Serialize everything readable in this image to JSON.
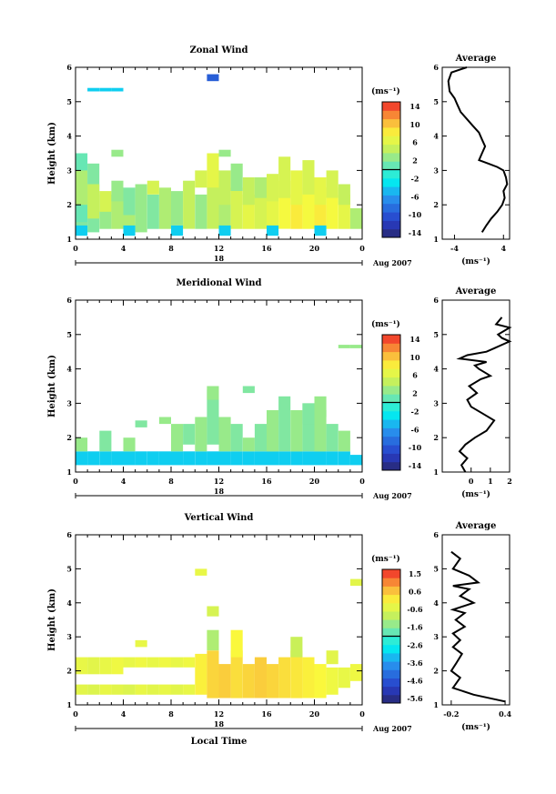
{
  "chart_data": [
    {
      "type": "heatmap",
      "title": "Zonal Wind",
      "ylabel": "Height (km)",
      "xlim": [
        0,
        24
      ],
      "ylim": [
        1,
        6
      ],
      "x_ticks": [
        "0",
        "4",
        "8",
        "12",
        "16",
        "20",
        "0"
      ],
      "y_ticks": [
        "1",
        "2",
        "3",
        "4",
        "5",
        "6"
      ],
      "day_label": "18",
      "month_label": "Aug 2007",
      "colorbar_unit": "(ms⁻¹)",
      "colorbar_ticks": [
        "14",
        "10",
        "6",
        "2",
        "-2",
        "-6",
        "-10",
        "-14"
      ],
      "colorbar_range": [
        -16,
        16
      ],
      "cells": [
        [
          0,
          1.2,
          2.0,
          2
        ],
        [
          0,
          1.5,
          2.0,
          1
        ],
        [
          0,
          2.0,
          1.0,
          4
        ],
        [
          1,
          1.2,
          2.0,
          2
        ],
        [
          1,
          1.6,
          1.0,
          5
        ],
        [
          2,
          1.3,
          1.0,
          3
        ],
        [
          2,
          1.8,
          0.6,
          6
        ],
        [
          3,
          1.3,
          1.0,
          4
        ],
        [
          3,
          2.1,
          0.6,
          3
        ],
        [
          4,
          1.3,
          1.0,
          4
        ],
        [
          4,
          1.7,
          0.8,
          2
        ],
        [
          5,
          1.2,
          1.4,
          3
        ],
        [
          6,
          1.3,
          1.0,
          2
        ],
        [
          6,
          2.3,
          0.4,
          6
        ],
        [
          7,
          1.3,
          1.2,
          4
        ],
        [
          8,
          1.4,
          1.0,
          3
        ],
        [
          9,
          1.3,
          1.4,
          5
        ],
        [
          10,
          1.3,
          1.0,
          3
        ],
        [
          10,
          2.5,
          0.5,
          6
        ],
        [
          11,
          1.3,
          1.4,
          5
        ],
        [
          11,
          2.5,
          1.0,
          7
        ],
        [
          12,
          1.3,
          1.0,
          4
        ],
        [
          12,
          2.0,
          1.0,
          5
        ],
        [
          13,
          1.3,
          1.2,
          6
        ],
        [
          13,
          2.4,
          0.8,
          3
        ],
        [
          14,
          1.3,
          1.0,
          7
        ],
        [
          14,
          2.0,
          0.8,
          5
        ],
        [
          15,
          1.3,
          1.0,
          6
        ],
        [
          15,
          2.2,
          0.6,
          4
        ],
        [
          16,
          1.3,
          1.2,
          7
        ],
        [
          16,
          2.1,
          0.8,
          6
        ],
        [
          17,
          1.3,
          1.4,
          8
        ],
        [
          17,
          2.2,
          1.2,
          6
        ],
        [
          18,
          1.3,
          1.0,
          9
        ],
        [
          18,
          2.0,
          1.0,
          7
        ],
        [
          19,
          1.3,
          1.2,
          8
        ],
        [
          19,
          2.3,
          1.0,
          6
        ],
        [
          20,
          1.3,
          1.0,
          9
        ],
        [
          20,
          2.0,
          0.8,
          7
        ],
        [
          21,
          1.3,
          1.2,
          8
        ],
        [
          21,
          2.2,
          0.8,
          6
        ],
        [
          22,
          1.3,
          1.0,
          7
        ],
        [
          22,
          2.0,
          0.6,
          5
        ],
        [
          23,
          1.3,
          0.6,
          4
        ],
        [
          0,
          1.1,
          0.3,
          -4
        ],
        [
          4,
          1.1,
          0.3,
          -4
        ],
        [
          8,
          1.1,
          0.3,
          -4
        ],
        [
          12,
          1.1,
          0.3,
          -4
        ],
        [
          16,
          1.1,
          0.3,
          -4
        ],
        [
          20,
          1.1,
          0.3,
          -4
        ],
        [
          1,
          5.3,
          0.1,
          -4
        ],
        [
          2,
          5.3,
          0.1,
          -4
        ],
        [
          3,
          5.3,
          0.1,
          -4
        ],
        [
          11,
          5.6,
          0.2,
          -10
        ],
        [
          3,
          3.4,
          0.2,
          3
        ],
        [
          12,
          3.4,
          0.2,
          3
        ]
      ],
      "average_profile": {
        "title": "Average",
        "xlim": [
          -6,
          5
        ],
        "x_ticks": [
          "-4",
          "4"
        ],
        "xlabel": "(ms⁻¹)",
        "x": [
          0.5,
          1.2,
          2.0,
          3.0,
          3.8,
          4.2,
          4.0,
          4.6,
          4.4,
          4.0,
          3.0,
          1.5,
          0.0,
          0.5,
          1.0,
          0.5,
          0.0,
          -1.0,
          -2.0,
          -3.0,
          -3.5,
          -4.0,
          -4.8,
          -5.0,
          -4.5,
          -2.0
        ],
        "y": [
          1.2,
          1.4,
          1.6,
          1.8,
          2.0,
          2.2,
          2.4,
          2.6,
          2.8,
          3.0,
          3.1,
          3.2,
          3.3,
          3.5,
          3.7,
          3.9,
          4.1,
          4.3,
          4.5,
          4.7,
          4.9,
          5.1,
          5.3,
          5.6,
          5.85,
          6.0
        ]
      }
    },
    {
      "type": "heatmap",
      "title": "Meridional Wind",
      "ylabel": "Height (km)",
      "xlim": [
        0,
        24
      ],
      "ylim": [
        1,
        6
      ],
      "x_ticks": [
        "0",
        "4",
        "8",
        "12",
        "16",
        "20",
        "0"
      ],
      "y_ticks": [
        "1",
        "2",
        "3",
        "4",
        "5",
        "6"
      ],
      "day_label": "18",
      "month_label": "Aug 2007",
      "colorbar_unit": "(ms⁻¹)",
      "colorbar_ticks": [
        "14",
        "10",
        "6",
        "2",
        "-2",
        "-6",
        "-10",
        "-14"
      ],
      "colorbar_range": [
        -16,
        16
      ],
      "cells": [
        [
          0,
          1.2,
          0.4,
          -4
        ],
        [
          1,
          1.2,
          0.4,
          -4
        ],
        [
          2,
          1.2,
          0.4,
          -4
        ],
        [
          3,
          1.2,
          0.4,
          -4
        ],
        [
          4,
          1.2,
          0.4,
          -4
        ],
        [
          5,
          1.2,
          0.4,
          -4
        ],
        [
          6,
          1.2,
          0.4,
          -4
        ],
        [
          7,
          1.2,
          0.4,
          -4
        ],
        [
          8,
          1.2,
          0.4,
          -4
        ],
        [
          9,
          1.2,
          0.4,
          -4
        ],
        [
          10,
          1.2,
          0.4,
          -4
        ],
        [
          11,
          1.2,
          0.4,
          -4
        ],
        [
          12,
          1.2,
          0.4,
          -4
        ],
        [
          13,
          1.2,
          0.4,
          -4
        ],
        [
          14,
          1.2,
          0.4,
          -4
        ],
        [
          15,
          1.2,
          0.4,
          -4
        ],
        [
          16,
          1.2,
          0.4,
          -4
        ],
        [
          17,
          1.2,
          0.4,
          -4
        ],
        [
          18,
          1.2,
          0.4,
          -4
        ],
        [
          19,
          1.2,
          0.4,
          -4
        ],
        [
          20,
          1.2,
          0.4,
          -4
        ],
        [
          21,
          1.2,
          0.4,
          -4
        ],
        [
          22,
          1.2,
          0.4,
          -4
        ],
        [
          23,
          1.2,
          0.3,
          -4
        ],
        [
          0,
          1.6,
          0.4,
          3
        ],
        [
          2,
          1.6,
          0.6,
          2
        ],
        [
          4,
          1.6,
          0.4,
          3
        ],
        [
          8,
          1.6,
          0.8,
          3
        ],
        [
          9,
          1.8,
          0.6,
          2
        ],
        [
          10,
          1.6,
          1.0,
          3
        ],
        [
          11,
          1.8,
          1.6,
          2
        ],
        [
          12,
          1.6,
          1.0,
          3
        ],
        [
          13,
          1.6,
          0.8,
          2
        ],
        [
          14,
          1.6,
          0.4,
          3
        ],
        [
          15,
          1.6,
          0.8,
          2
        ],
        [
          16,
          1.6,
          1.2,
          3
        ],
        [
          17,
          1.6,
          1.6,
          2
        ],
        [
          18,
          1.6,
          1.2,
          3
        ],
        [
          19,
          1.6,
          1.4,
          2
        ],
        [
          20,
          1.6,
          1.2,
          3
        ],
        [
          21,
          1.6,
          0.8,
          2
        ],
        [
          22,
          1.6,
          0.6,
          3
        ],
        [
          19,
          2.4,
          0.6,
          2
        ],
        [
          20,
          2.6,
          0.6,
          3
        ],
        [
          5,
          2.3,
          0.2,
          2
        ],
        [
          7,
          2.4,
          0.2,
          3
        ],
        [
          11,
          3.1,
          0.4,
          3
        ],
        [
          14,
          3.3,
          0.2,
          2
        ],
        [
          22,
          4.6,
          0.1,
          3
        ],
        [
          23,
          4.6,
          0.1,
          3
        ]
      ],
      "average_profile": {
        "title": "Average",
        "xlim": [
          -1.5,
          2
        ],
        "x_ticks": [
          "0",
          "1",
          "2"
        ],
        "xlabel": "(ms⁻¹)",
        "x": [
          -0.3,
          -0.5,
          -0.2,
          -0.6,
          -0.3,
          0.2,
          0.8,
          1.2,
          0.6,
          0.0,
          -0.2,
          0.3,
          -0.1,
          0.5,
          1.0,
          0.4,
          0.2,
          0.8,
          -0.6,
          -0.2,
          0.8,
          1.2,
          2.0,
          1.6,
          1.4,
          2.0,
          1.3,
          1.6
        ],
        "y": [
          1.0,
          1.2,
          1.4,
          1.6,
          1.8,
          2.0,
          2.2,
          2.5,
          2.7,
          2.9,
          3.1,
          3.3,
          3.5,
          3.7,
          3.8,
          4.0,
          4.1,
          4.2,
          4.3,
          4.4,
          4.5,
          4.6,
          4.8,
          4.9,
          5.0,
          5.2,
          5.3,
          5.5
        ]
      }
    },
    {
      "type": "heatmap",
      "title": "Vertical Wind",
      "ylabel": "Height (km)",
      "xlabel": "Local Time",
      "xlim": [
        0,
        24
      ],
      "ylim": [
        1,
        6
      ],
      "x_ticks": [
        "0",
        "4",
        "8",
        "12",
        "16",
        "20",
        "0"
      ],
      "y_ticks": [
        "1",
        "2",
        "3",
        "4",
        "5",
        "6"
      ],
      "day_label": "18",
      "month_label": "Aug 2007",
      "colorbar_unit": "(ms⁻¹)",
      "colorbar_ticks": [
        "1.5",
        "0.6",
        "-0.6",
        "-1.6",
        "-2.6",
        "-3.6",
        "-4.6",
        "-5.6"
      ],
      "colorbar_range": [
        -6.0,
        2.0
      ],
      "cells": [
        [
          0,
          1.3,
          0.3,
          -0.3
        ],
        [
          1,
          1.3,
          0.3,
          -0.4
        ],
        [
          2,
          1.3,
          0.3,
          -0.2
        ],
        [
          3,
          1.3,
          0.3,
          -0.3
        ],
        [
          4,
          1.3,
          0.3,
          -0.4
        ],
        [
          5,
          1.3,
          0.3,
          -0.2
        ],
        [
          6,
          1.3,
          0.3,
          -0.3
        ],
        [
          7,
          1.3,
          0.3,
          -0.2
        ],
        [
          8,
          1.3,
          0.3,
          -0.3
        ],
        [
          9,
          1.3,
          0.3,
          -0.2
        ],
        [
          0,
          1.9,
          0.5,
          -0.2
        ],
        [
          1,
          1.9,
          0.5,
          -0.3
        ],
        [
          2,
          1.9,
          0.5,
          -0.2
        ],
        [
          3,
          1.9,
          0.5,
          -0.1
        ],
        [
          4,
          2.1,
          0.3,
          -0.2
        ],
        [
          5,
          2.1,
          0.3,
          -0.1
        ],
        [
          6,
          2.1,
          0.3,
          -0.2
        ],
        [
          7,
          2.1,
          0.3,
          -0.1
        ],
        [
          8,
          2.1,
          0.3,
          -0.2
        ],
        [
          9,
          2.1,
          0.3,
          -0.1
        ],
        [
          10,
          1.3,
          1.2,
          0.2
        ],
        [
          11,
          1.2,
          1.4,
          0.5
        ],
        [
          12,
          1.2,
          1.0,
          0.6
        ],
        [
          13,
          1.2,
          1.4,
          0.4
        ],
        [
          14,
          1.2,
          1.0,
          0.5
        ],
        [
          15,
          1.2,
          1.2,
          0.6
        ],
        [
          16,
          1.2,
          1.0,
          0.5
        ],
        [
          17,
          1.2,
          1.2,
          0.4
        ],
        [
          18,
          1.2,
          1.4,
          0.3
        ],
        [
          19,
          1.2,
          1.2,
          0.2
        ],
        [
          20,
          1.2,
          1.0,
          0.1
        ],
        [
          21,
          1.3,
          0.8,
          -0.1
        ],
        [
          22,
          1.5,
          0.6,
          -0.2
        ],
        [
          23,
          1.7,
          0.5,
          -0.1
        ],
        [
          11,
          2.6,
          0.6,
          -1.0
        ],
        [
          13,
          2.4,
          0.8,
          0.1
        ],
        [
          18,
          2.4,
          0.6,
          -0.7
        ],
        [
          21,
          2.2,
          0.4,
          -0.3
        ],
        [
          5,
          2.7,
          0.2,
          -0.2
        ],
        [
          11,
          3.6,
          0.3,
          -0.5
        ],
        [
          23,
          4.5,
          0.2,
          -0.3
        ],
        [
          10,
          4.8,
          0.2,
          -0.2
        ]
      ],
      "average_profile": {
        "title": "Average",
        "xlim": [
          -0.3,
          0.45
        ],
        "x_ticks": [
          "-0.2",
          "0.4"
        ],
        "xlabel": "(ms⁻¹)",
        "x": [
          0.4,
          0.05,
          -0.18,
          -0.1,
          -0.2,
          -0.15,
          -0.08,
          -0.18,
          -0.1,
          -0.18,
          -0.05,
          -0.15,
          -0.05,
          -0.18,
          0.05,
          -0.1,
          0.0,
          -0.18,
          0.1,
          0.0,
          -0.18,
          -0.1,
          -0.2
        ],
        "y": [
          1.1,
          1.3,
          1.5,
          1.8,
          2.0,
          2.2,
          2.5,
          2.7,
          2.9,
          3.1,
          3.3,
          3.5,
          3.7,
          3.8,
          4.0,
          4.2,
          4.4,
          4.5,
          4.6,
          4.8,
          5.0,
          5.3,
          5.5
        ]
      }
    }
  ]
}
